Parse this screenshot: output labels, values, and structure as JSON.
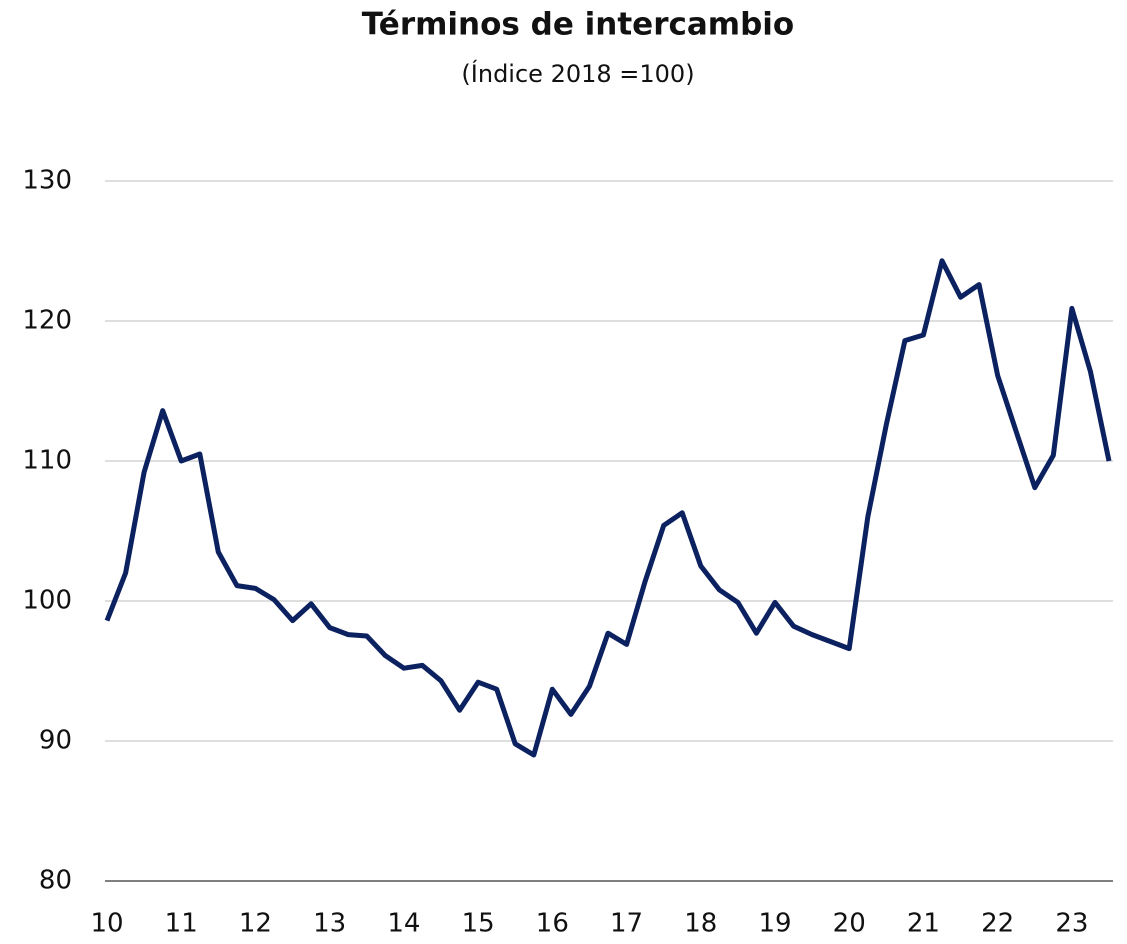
{
  "chart_data": {
    "type": "line",
    "title": "Términos de intercambio",
    "subtitle": "(Índice 2018 =100)",
    "categories": [
      "10",
      null,
      null,
      null,
      "11",
      null,
      null,
      null,
      "12",
      null,
      null,
      null,
      "13",
      null,
      null,
      null,
      "14",
      null,
      null,
      null,
      "15",
      null,
      null,
      null,
      "16",
      null,
      null,
      null,
      "17",
      null,
      null,
      null,
      "18",
      null,
      null,
      null,
      "19",
      null,
      null,
      null,
      "20",
      null,
      null,
      null,
      "21",
      null,
      null,
      null,
      "22",
      null,
      null,
      null,
      "23",
      null,
      null
    ],
    "series": [
      {
        "name": "Términos de intercambio",
        "color": "#0b2160",
        "values": [
          98.6,
          102,
          109.2,
          113.6,
          110,
          110.5,
          103.5,
          101.1,
          100.9,
          100.1,
          98.6,
          99.8,
          98.1,
          97.6,
          97.5,
          96.1,
          95.2,
          95.4,
          94.3,
          92.2,
          94.2,
          93.7,
          89.8,
          89.0,
          93.7,
          91.9,
          93.9,
          97.7,
          96.9,
          101.4,
          105.4,
          106.3,
          102.5,
          100.8,
          99.9,
          97.7,
          99.9,
          98.2,
          97.6,
          97.1,
          96.6,
          106.0,
          112.6,
          118.6,
          119.0,
          124.3,
          121.7,
          122.6,
          116.1,
          112.1,
          108.1,
          110.4,
          120.9,
          116.4,
          110.0
        ]
      }
    ],
    "ylim": [
      80,
      130
    ],
    "yticks": [
      80,
      90,
      100,
      110,
      120,
      130
    ],
    "grid": true
  }
}
